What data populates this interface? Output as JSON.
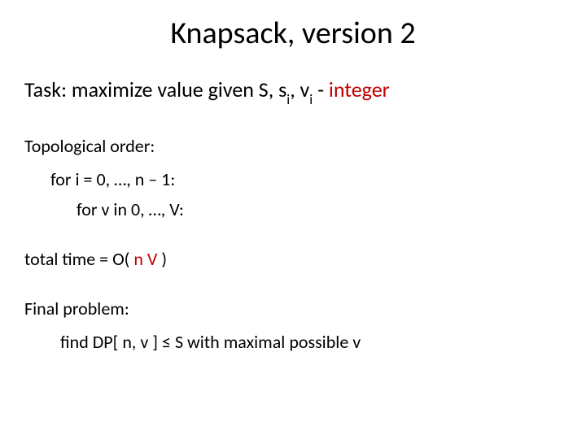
{
  "colors": {
    "text": "#000000",
    "accent": "#c00000",
    "background": "#ffffff"
  },
  "fonts": {
    "family": "Calibri",
    "title_size": 38,
    "task_size": 26,
    "body_size": 22,
    "sub_size": 17
  },
  "title": "Knapsack, version 2",
  "task": {
    "prefix": "Task: maximize value given S, s",
    "sub1": "i",
    "mid": ", v",
    "sub2": "i",
    "dash": " - ",
    "accent": "integer"
  },
  "body": {
    "topo": "Topological order:",
    "for_i": "for i = 0, …, n – 1:",
    "for_v": "for v in 0, …, V:",
    "total_prefix": "total time  =  O(  ",
    "total_n": "n",
    "total_space": " ",
    "total_V": "V",
    "total_suffix": "  )",
    "final_label": "Final problem:",
    "final_text": "find DP[ n, v ] ≤ S with maximal possible v"
  }
}
